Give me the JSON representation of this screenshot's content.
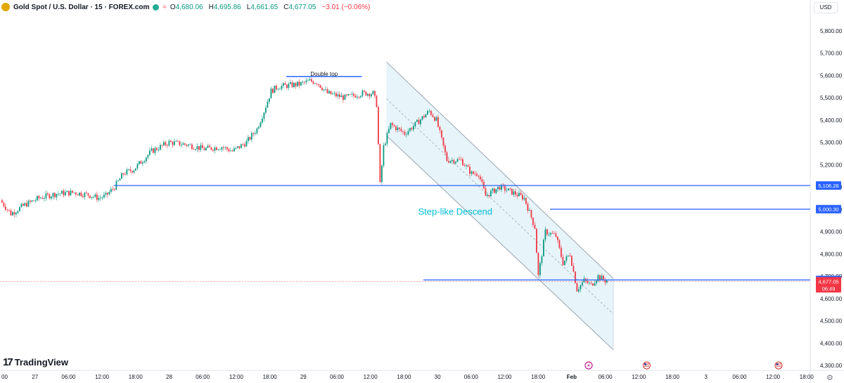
{
  "header": {
    "symbol": "Gold Spot / U.S. Dollar · 15 · FOREX.com",
    "o_label": "O",
    "o_val": "4,680.06",
    "h_label": "H",
    "h_val": "4,695.86",
    "l_label": "L",
    "l_val": "4,661.65",
    "c_label": "C",
    "c_val": "4,677.05",
    "change": "−3.01 (−0.06%)",
    "indicator_icon": "circle-green-icon",
    "indicator2": "≈"
  },
  "currency_button": "USD",
  "brand": {
    "mark": "17",
    "name": "TradingView"
  },
  "colors": {
    "up": "#089981",
    "down": "#f23645",
    "level": "#2962ff",
    "channel_fill": "#e7f4f9",
    "channel_line": "#9aa5b1",
    "annotation": "#00bcd4"
  },
  "chart_data": {
    "type": "candlestick",
    "symbol": "XAUUSD",
    "timeframe": "15",
    "ylim": [
      4300,
      5900
    ],
    "y_ticks": [
      "5,800.00",
      "5,700.00",
      "5,600.00",
      "5,500.00",
      "5,400.00",
      "5,300.00",
      "5,200.00",
      "5,100.00",
      "5,000.00",
      "4,900.00",
      "4,800.00",
      "4,700.00",
      "4,600.00",
      "4,500.00",
      "4,400.00",
      "4,300.00"
    ],
    "x_ticks": [
      "00",
      "27",
      "06:00",
      "12:00",
      "18:00",
      "28",
      "06:00",
      "12:00",
      "18:00",
      "29",
      "06:00",
      "12:00",
      "18:00",
      "30",
      "06:00",
      "12:00",
      "18:00",
      "Feb",
      "06:00",
      "12:00",
      "18:00",
      "3",
      "06:00",
      "12:00",
      "18:00"
    ],
    "x_tick_bold": "Feb",
    "anchors": [
      [
        0,
        5040
      ],
      [
        6,
        4980
      ],
      [
        14,
        5020
      ],
      [
        22,
        5050
      ],
      [
        32,
        5070
      ],
      [
        42,
        5075
      ],
      [
        50,
        5065
      ],
      [
        56,
        5050
      ],
      [
        60,
        5060
      ],
      [
        65,
        5100
      ],
      [
        70,
        5160
      ],
      [
        76,
        5180
      ],
      [
        86,
        5260
      ],
      [
        96,
        5300
      ],
      [
        106,
        5290
      ],
      [
        116,
        5270
      ],
      [
        126,
        5280
      ],
      [
        132,
        5260
      ],
      [
        140,
        5300
      ],
      [
        146,
        5360
      ],
      [
        150,
        5440
      ],
      [
        154,
        5530
      ],
      [
        158,
        5550
      ],
      [
        170,
        5560
      ],
      [
        176,
        5575
      ],
      [
        180,
        5570
      ],
      [
        186,
        5520
      ],
      [
        196,
        5500
      ],
      [
        206,
        5520
      ],
      [
        212,
        5520
      ],
      [
        214,
        5470
      ],
      [
        216,
        5110
      ],
      [
        218,
        5280
      ],
      [
        222,
        5380
      ],
      [
        230,
        5340
      ],
      [
        236,
        5380
      ],
      [
        244,
        5440
      ],
      [
        248,
        5400
      ],
      [
        254,
        5220
      ],
      [
        262,
        5220
      ],
      [
        268,
        5160
      ],
      [
        272,
        5160
      ],
      [
        276,
        5060
      ],
      [
        284,
        5100
      ],
      [
        290,
        5080
      ],
      [
        298,
        5050
      ],
      [
        304,
        4920
      ],
      [
        306,
        4700
      ],
      [
        310,
        4900
      ],
      [
        316,
        4880
      ],
      [
        320,
        4760
      ],
      [
        324,
        4800
      ],
      [
        328,
        4640
      ],
      [
        332,
        4680
      ],
      [
        336,
        4660
      ],
      [
        340,
        4700
      ],
      [
        344,
        4680
      ]
    ],
    "current_price": "4,677.05",
    "countdown": "06:49",
    "levels": [
      {
        "label": "5,106.28",
        "value": 5106.28,
        "start": 64
      },
      {
        "label": "5,000.30",
        "value": 5000.3,
        "start": 312
      },
      {
        "label": "4,683.15",
        "value": 4683.15,
        "start": 240
      }
    ],
    "channel": {
      "upper": [
        [
          219,
          5660
        ],
        [
          348,
          4690
        ]
      ],
      "lower": [
        [
          219,
          5330
        ],
        [
          348,
          4370
        ]
      ],
      "mid": [
        [
          219,
          5495
        ],
        [
          348,
          4530
        ]
      ],
      "x_end": 348
    },
    "double_top": {
      "label": "Double top",
      "value": 5595,
      "x": [
        162,
        205
      ]
    },
    "annotation": {
      "label": "Step-like Descend",
      "value": 4975,
      "x": 237
    },
    "event_icons": [
      {
        "name": "lightning-event-icon",
        "x": 334
      },
      {
        "name": "us-flag-event-icon",
        "x": 367
      },
      {
        "name": "us-flag-event-icon",
        "x": 442
      }
    ]
  }
}
